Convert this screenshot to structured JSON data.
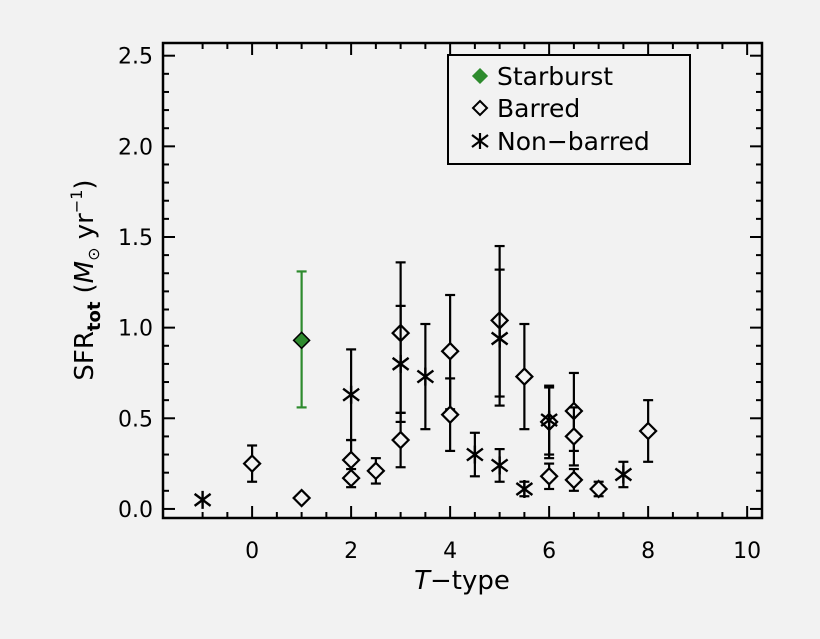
{
  "chart_data": {
    "type": "scatter",
    "xlabel": {
      "italic": "T",
      "rest": "−type"
    },
    "ylabel": {
      "main": "SFR",
      "sub": "tot",
      "unit_open": "(",
      "unit_M": "M",
      "unit_sun": "⊙",
      "unit_yr": " yr",
      "unit_exp": "−1",
      "unit_close": ")"
    },
    "xlim": [
      -1.8,
      10.3
    ],
    "ylim": [
      -0.05,
      2.57
    ],
    "x_ticks": [
      0,
      2,
      4,
      6,
      8,
      10
    ],
    "y_ticks": [
      0.0,
      0.5,
      1.0,
      1.5,
      2.0,
      2.5
    ],
    "x_tick_labels": [
      "0",
      "2",
      "4",
      "6",
      "8",
      "10"
    ],
    "y_tick_labels": [
      "0.0",
      "0.5",
      "1.0",
      "1.5",
      "2.0",
      "2.5"
    ],
    "legend_position": "top-right",
    "colors": {
      "starburst": "#2e8b2e",
      "default": "#000000"
    },
    "series": [
      {
        "name": "Starburst",
        "marker": "filled-diamond",
        "points": [
          {
            "x": 1.0,
            "y": 0.93,
            "err_low": 0.56,
            "err_high": 1.31
          }
        ]
      },
      {
        "name": "Barred",
        "marker": "open-diamond",
        "points": [
          {
            "x": 0.0,
            "y": 0.25,
            "err_low": 0.15,
            "err_high": 0.35
          },
          {
            "x": 1.0,
            "y": 0.06
          },
          {
            "x": 2.0,
            "y": 0.27,
            "err_low": 0.18,
            "err_high": 0.38
          },
          {
            "x": 2.0,
            "y": 0.17,
            "err_low": 0.12,
            "err_high": 0.22
          },
          {
            "x": 2.5,
            "y": 0.21,
            "err_low": 0.14,
            "err_high": 0.28
          },
          {
            "x": 3.0,
            "y": 0.97,
            "err_low": 0.53,
            "err_high": 1.36
          },
          {
            "x": 3.0,
            "y": 0.38,
            "err_low": 0.23,
            "err_high": 0.53
          },
          {
            "x": 4.0,
            "y": 0.87,
            "err_low": 0.55,
            "err_high": 1.18
          },
          {
            "x": 4.0,
            "y": 0.52,
            "err_low": 0.32,
            "err_high": 0.72
          },
          {
            "x": 5.0,
            "y": 1.04,
            "err_low": 0.62,
            "err_high": 1.45
          },
          {
            "x": 5.5,
            "y": 0.73,
            "err_low": 0.44,
            "err_high": 1.02
          },
          {
            "x": 6.0,
            "y": 0.48,
            "err_low": 0.28,
            "err_high": 0.67
          },
          {
            "x": 6.0,
            "y": 0.18,
            "err_low": 0.11,
            "err_high": 0.25
          },
          {
            "x": 6.5,
            "y": 0.54,
            "err_low": 0.32,
            "err_high": 0.75
          },
          {
            "x": 6.5,
            "y": 0.4,
            "err_low": 0.24,
            "err_high": 0.56
          },
          {
            "x": 6.5,
            "y": 0.16,
            "err_low": 0.1,
            "err_high": 0.22
          },
          {
            "x": 7.0,
            "y": 0.11,
            "err_low": 0.07,
            "err_high": 0.15
          },
          {
            "x": 8.0,
            "y": 0.43,
            "err_low": 0.26,
            "err_high": 0.6
          }
        ]
      },
      {
        "name": "Non−barred",
        "marker": "asterisk",
        "points": [
          {
            "x": -1.0,
            "y": 0.05
          },
          {
            "x": 2.0,
            "y": 0.63,
            "err_low": 0.38,
            "err_high": 0.88
          },
          {
            "x": 3.0,
            "y": 0.8,
            "err_low": 0.48,
            "err_high": 1.12
          },
          {
            "x": 3.5,
            "y": 0.73,
            "err_low": 0.44,
            "err_high": 1.02
          },
          {
            "x": 4.5,
            "y": 0.3,
            "err_low": 0.18,
            "err_high": 0.42
          },
          {
            "x": 5.0,
            "y": 0.94,
            "err_low": 0.57,
            "err_high": 1.32
          },
          {
            "x": 5.0,
            "y": 0.24,
            "err_low": 0.15,
            "err_high": 0.33
          },
          {
            "x": 5.5,
            "y": 0.11,
            "err_low": 0.07,
            "err_high": 0.15
          },
          {
            "x": 6.0,
            "y": 0.49,
            "err_low": 0.3,
            "err_high": 0.68
          },
          {
            "x": 7.5,
            "y": 0.19,
            "err_low": 0.12,
            "err_high": 0.26
          }
        ]
      }
    ]
  }
}
